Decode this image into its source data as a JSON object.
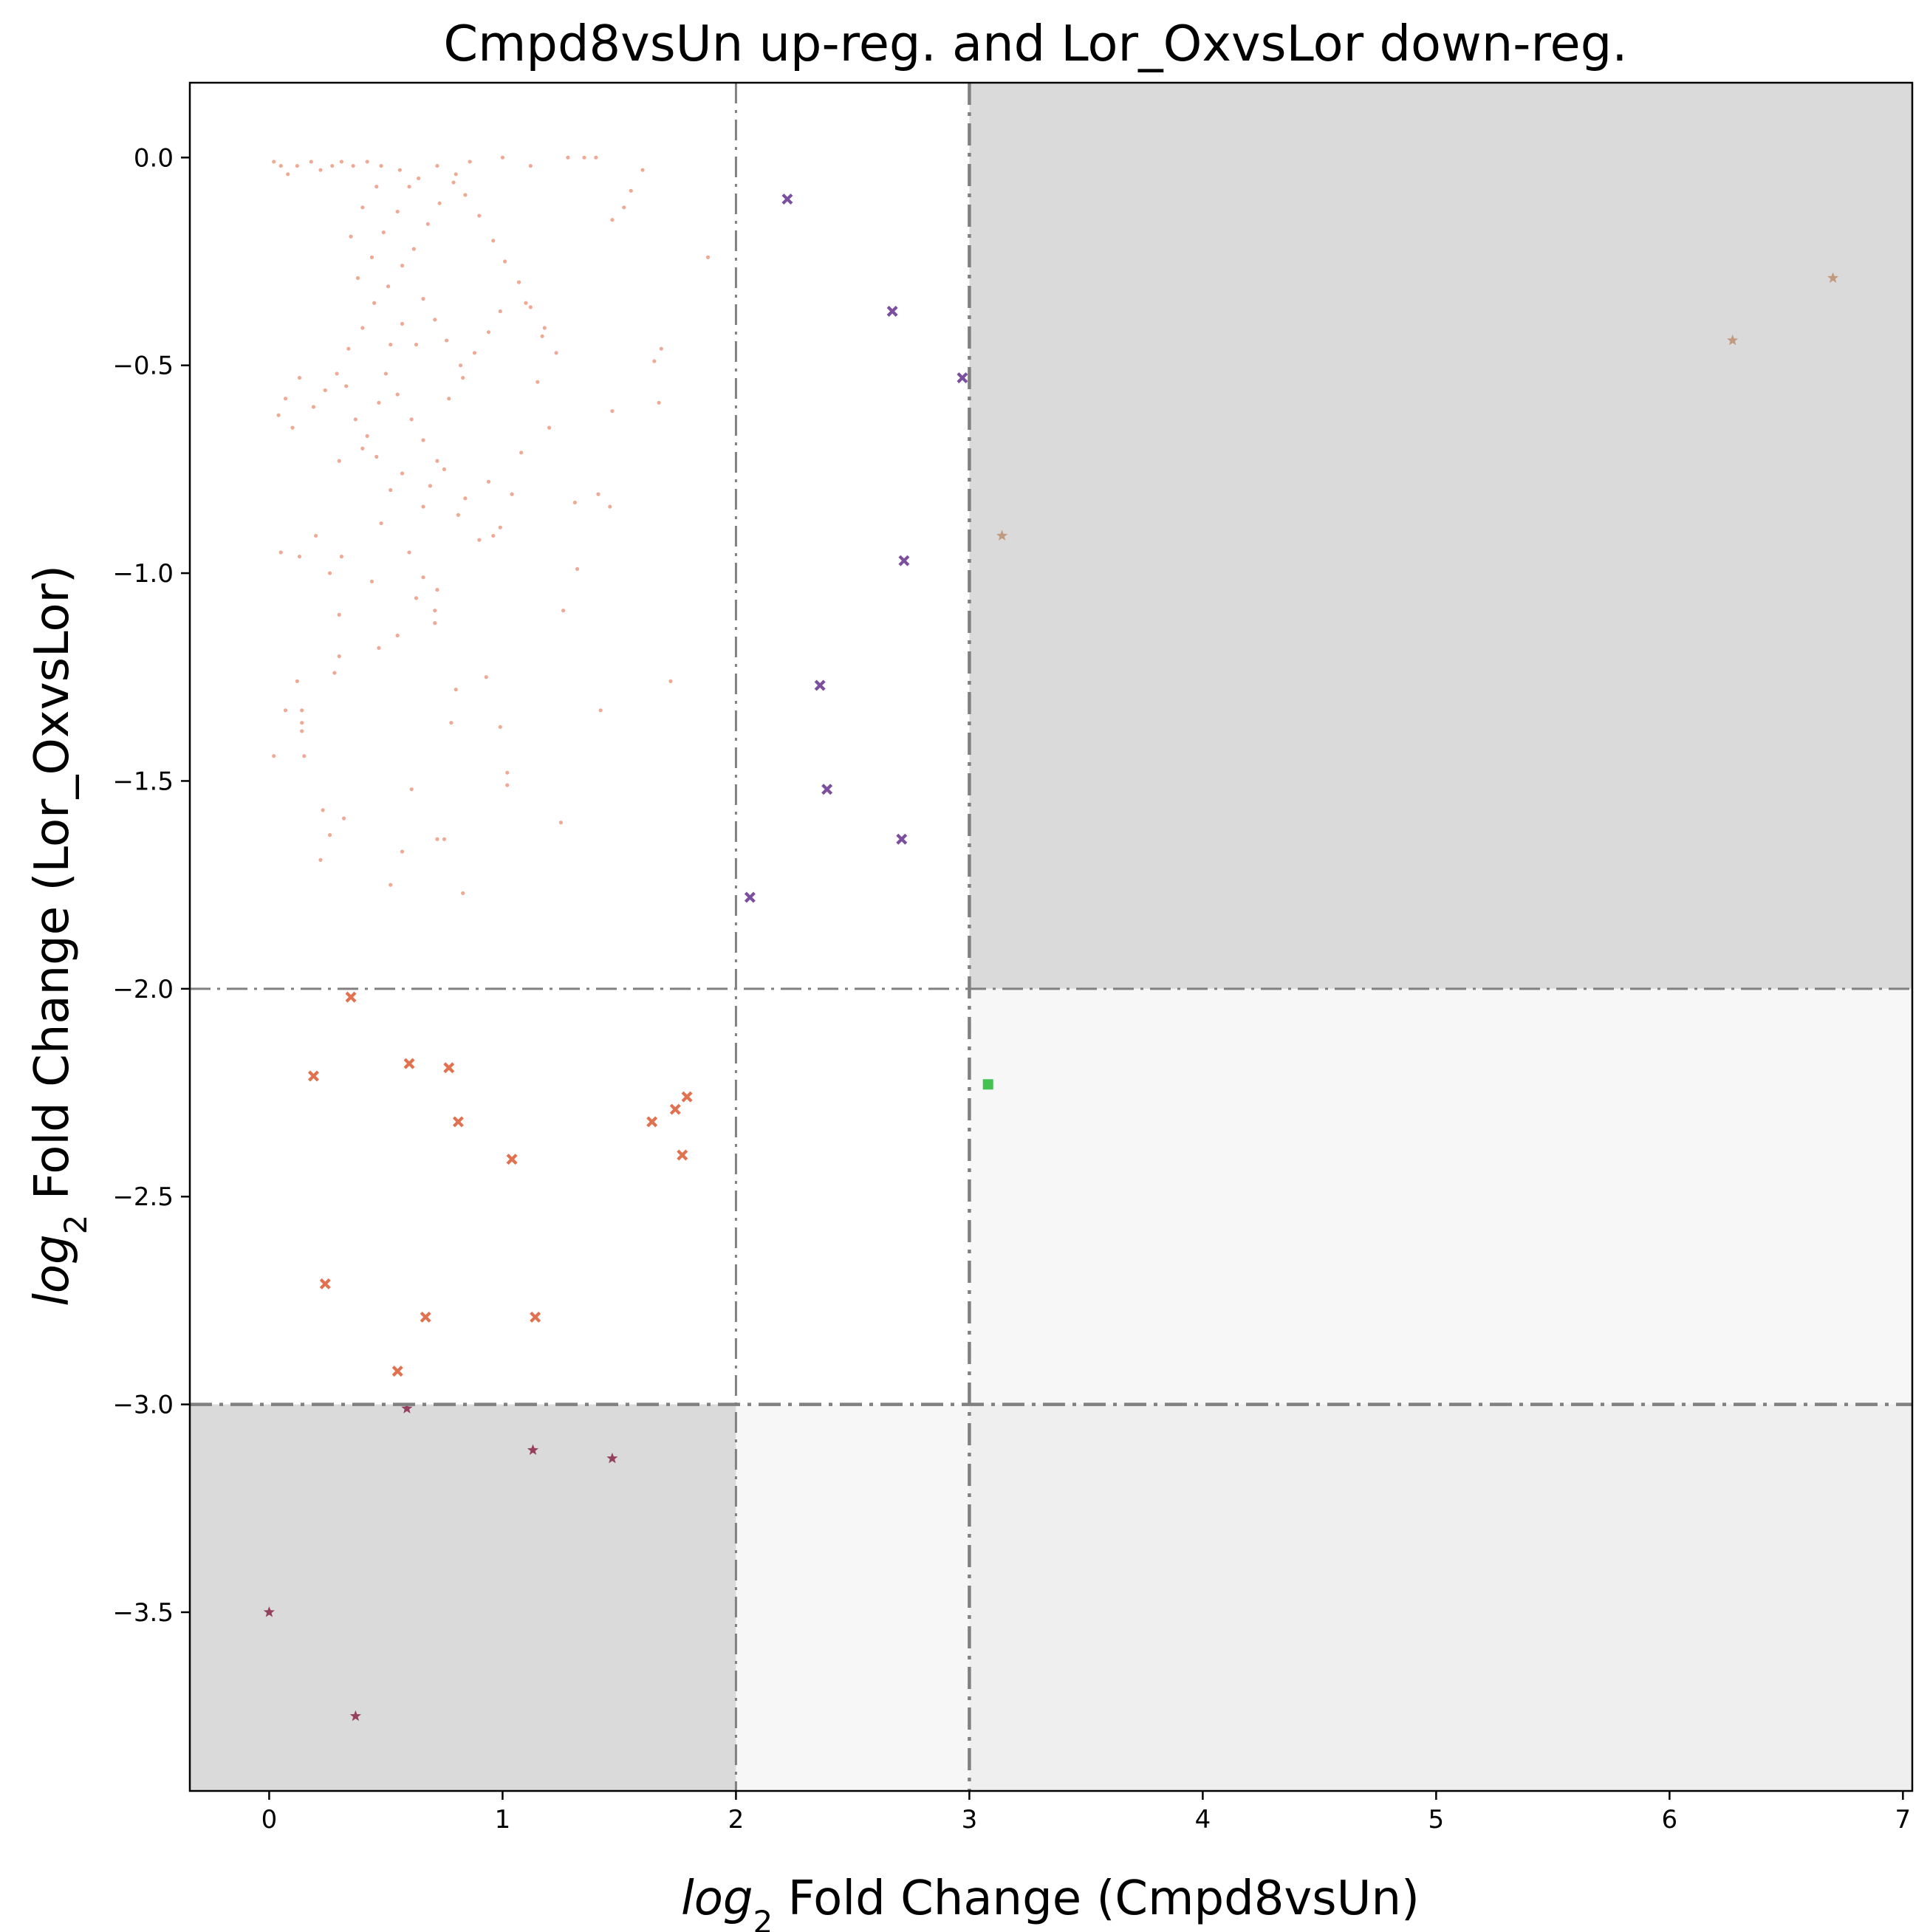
{
  "chart_data": {
    "type": "scatter",
    "title": "Cmpd8vsUn up-reg. and Lor_OxvsLor down-reg.",
    "xlabel": {
      "italic": "log",
      "sub": "2",
      "rest": " Fold Change (Cmpd8vsUn)"
    },
    "ylabel": {
      "italic": "log",
      "sub": "2",
      "rest": " Fold Change (Lor_OxvsLor)"
    },
    "xlim": [
      -0.34,
      7.04
    ],
    "ylim": [
      -3.93,
      0.18
    ],
    "xticks": [
      0,
      1,
      2,
      3,
      4,
      5,
      6,
      7
    ],
    "xtick_labels": [
      "0",
      "1",
      "2",
      "3",
      "4",
      "5",
      "6",
      "7"
    ],
    "yticks": [
      0.0,
      -0.5,
      -1.0,
      -1.5,
      -2.0,
      -2.5,
      -3.0,
      -3.5
    ],
    "ytick_labels": [
      "0.0",
      "−0.5",
      "−1.0",
      "−1.5",
      "−2.0",
      "−2.5",
      "−3.0",
      "−3.5"
    ],
    "grid": false,
    "legend": "none",
    "thresholds": {
      "x": [
        2,
        3
      ],
      "y": [
        -2,
        -3
      ]
    },
    "shaded_regions": [
      {
        "x": [
          3,
          7.04
        ],
        "y": [
          -2,
          0.18
        ],
        "color": "#dadada"
      },
      {
        "x": [
          -0.34,
          2
        ],
        "y": [
          -3.93,
          -3
        ],
        "color": "#dadada"
      },
      {
        "x": [
          3,
          7.04
        ],
        "y": [
          -3,
          -2
        ],
        "color": "#f7f7f7"
      },
      {
        "x": [
          2,
          3
        ],
        "y": [
          -3.93,
          -3
        ],
        "color": "#f7f7f7"
      },
      {
        "x": [
          3,
          7.04
        ],
        "y": [
          -3.93,
          -3
        ],
        "color": "#efefef"
      }
    ],
    "series": [
      {
        "marker": "dot",
        "color": "#e2714f",
        "note_dense": true,
        "points": [
          [
            0.02,
            -0.01
          ],
          [
            0.05,
            -0.02
          ],
          [
            0.08,
            -0.04
          ],
          [
            0.12,
            -0.02
          ],
          [
            0.18,
            -0.01
          ],
          [
            0.22,
            -0.03
          ],
          [
            0.27,
            -0.02
          ],
          [
            0.31,
            -0.01
          ],
          [
            0.36,
            -0.02
          ],
          [
            0.42,
            -0.01
          ],
          [
            0.48,
            -0.02
          ],
          [
            0.56,
            -0.03
          ],
          [
            0.64,
            -0.05
          ],
          [
            0.72,
            -0.02
          ],
          [
            0.8,
            -0.04
          ],
          [
            0.86,
            -0.01
          ],
          [
            1.0,
            0.0
          ],
          [
            1.12,
            -0.02
          ],
          [
            1.28,
            0.0
          ],
          [
            1.35,
            0.0
          ],
          [
            1.4,
            0.0
          ],
          [
            1.6,
            -0.03
          ],
          [
            1.55,
            -0.08
          ],
          [
            1.52,
            -0.12
          ],
          [
            1.47,
            -0.15
          ],
          [
            1.88,
            -0.24
          ],
          [
            1.68,
            -0.46
          ],
          [
            1.65,
            -0.49
          ],
          [
            1.67,
            -0.59
          ],
          [
            1.47,
            -0.61
          ],
          [
            1.41,
            -0.81
          ],
          [
            1.46,
            -0.84
          ],
          [
            1.31,
            -0.83
          ],
          [
            1.32,
            -0.99
          ],
          [
            1.26,
            -1.09
          ],
          [
            1.72,
            -1.26
          ],
          [
            1.42,
            -1.33
          ],
          [
            1.25,
            -1.6
          ],
          [
            1.2,
            -0.65
          ],
          [
            1.17,
            -0.43
          ],
          [
            1.15,
            -0.54
          ],
          [
            1.1,
            -0.35
          ],
          [
            1.08,
            -0.71
          ],
          [
            1.04,
            -0.81
          ],
          [
            0.99,
            -0.89
          ],
          [
            1.02,
            -1.48
          ],
          [
            1.02,
            -1.51
          ],
          [
            0.99,
            -1.37
          ],
          [
            0.93,
            -1.25
          ],
          [
            0.8,
            -1.28
          ],
          [
            0.78,
            -1.36
          ],
          [
            0.75,
            -1.64
          ],
          [
            0.72,
            -1.64
          ],
          [
            0.83,
            -1.77
          ],
          [
            0.57,
            -1.67
          ],
          [
            0.52,
            -1.75
          ],
          [
            0.61,
            -1.52
          ],
          [
            0.32,
            -1.59
          ],
          [
            0.23,
            -1.57
          ],
          [
            0.26,
            -1.63
          ],
          [
            0.22,
            -1.69
          ],
          [
            0.15,
            -1.44
          ],
          [
            0.14,
            -1.38
          ],
          [
            0.14,
            -1.36
          ],
          [
            0.14,
            -1.33
          ],
          [
            0.12,
            -1.26
          ],
          [
            0.07,
            -1.33
          ],
          [
            0.02,
            -1.44
          ],
          [
            0.28,
            -1.24
          ],
          [
            0.3,
            -1.2
          ],
          [
            0.47,
            -1.18
          ],
          [
            0.55,
            -1.15
          ],
          [
            0.3,
            -1.1
          ],
          [
            0.26,
            -1.0
          ],
          [
            0.31,
            -0.96
          ],
          [
            0.13,
            -0.96
          ],
          [
            0.05,
            -0.95
          ],
          [
            0.2,
            -0.91
          ],
          [
            0.44,
            -1.02
          ],
          [
            0.48,
            -0.88
          ],
          [
            0.6,
            -0.95
          ],
          [
            0.66,
            -1.01
          ],
          [
            0.63,
            -1.06
          ],
          [
            0.72,
            -1.04
          ],
          [
            0.71,
            -1.09
          ],
          [
            0.71,
            -1.12
          ],
          [
            0.9,
            -0.92
          ],
          [
            0.96,
            -0.91
          ],
          [
            0.66,
            -0.84
          ],
          [
            0.69,
            -0.79
          ],
          [
            0.75,
            -0.75
          ],
          [
            0.81,
            -0.86
          ],
          [
            0.84,
            -0.82
          ],
          [
            0.94,
            -0.78
          ],
          [
            0.57,
            -0.76
          ],
          [
            0.52,
            -0.8
          ],
          [
            0.46,
            -0.72
          ],
          [
            0.4,
            -0.7
          ],
          [
            0.3,
            -0.73
          ],
          [
            0.04,
            -0.62
          ],
          [
            0.1,
            -0.65
          ],
          [
            0.07,
            -0.58
          ],
          [
            0.13,
            -0.53
          ],
          [
            0.19,
            -0.6
          ],
          [
            0.24,
            -0.56
          ],
          [
            0.29,
            -0.52
          ],
          [
            0.34,
            -0.46
          ],
          [
            0.4,
            -0.41
          ],
          [
            0.45,
            -0.35
          ],
          [
            0.51,
            -0.31
          ],
          [
            0.57,
            -0.26
          ],
          [
            0.62,
            -0.22
          ],
          [
            0.68,
            -0.16
          ],
          [
            0.73,
            -0.11
          ],
          [
            0.79,
            -0.06
          ],
          [
            0.84,
            -0.09
          ],
          [
            0.9,
            -0.14
          ],
          [
            0.96,
            -0.2
          ],
          [
            1.01,
            -0.25
          ],
          [
            1.07,
            -0.3
          ],
          [
            1.12,
            -0.36
          ],
          [
            1.18,
            -0.41
          ],
          [
            1.23,
            -0.47
          ],
          [
            0.5,
            -0.52
          ],
          [
            0.55,
            -0.57
          ],
          [
            0.61,
            -0.63
          ],
          [
            0.66,
            -0.68
          ],
          [
            0.72,
            -0.73
          ],
          [
            0.77,
            -0.58
          ],
          [
            0.83,
            -0.53
          ],
          [
            0.88,
            -0.47
          ],
          [
            0.94,
            -0.42
          ],
          [
            0.99,
            -0.37
          ],
          [
            0.37,
            -0.63
          ],
          [
            0.42,
            -0.67
          ],
          [
            0.47,
            -0.59
          ],
          [
            0.33,
            -0.55
          ],
          [
            0.38,
            -0.29
          ],
          [
            0.44,
            -0.24
          ],
          [
            0.49,
            -0.18
          ],
          [
            0.55,
            -0.13
          ],
          [
            0.6,
            -0.07
          ],
          [
            0.66,
            -0.34
          ],
          [
            0.71,
            -0.39
          ],
          [
            0.76,
            -0.44
          ],
          [
            0.82,
            -0.5
          ],
          [
            0.35,
            -0.19
          ],
          [
            0.4,
            -0.12
          ],
          [
            0.46,
            -0.07
          ],
          [
            0.52,
            -0.45
          ],
          [
            0.57,
            -0.4
          ],
          [
            0.63,
            -0.45
          ]
        ]
      },
      {
        "marker": "cross",
        "color": "#7b4f9e",
        "points": [
          [
            2.22,
            -0.1
          ],
          [
            2.67,
            -0.37
          ],
          [
            2.97,
            -0.53
          ],
          [
            2.72,
            -0.97
          ],
          [
            2.36,
            -1.27
          ],
          [
            2.39,
            -1.52
          ],
          [
            2.71,
            -1.64
          ],
          [
            2.06,
            -1.78
          ]
        ]
      },
      {
        "marker": "star",
        "color": "#c19a7f",
        "points": [
          [
            6.7,
            -0.29
          ],
          [
            6.27,
            -0.44
          ],
          [
            3.14,
            -0.91
          ]
        ]
      },
      {
        "marker": "cross",
        "color": "#e2714f",
        "points": [
          [
            0.35,
            -2.02
          ],
          [
            0.19,
            -2.21
          ],
          [
            0.6,
            -2.18
          ],
          [
            0.77,
            -2.19
          ],
          [
            0.81,
            -2.32
          ],
          [
            1.04,
            -2.41
          ],
          [
            1.64,
            -2.32
          ],
          [
            1.74,
            -2.29
          ],
          [
            1.79,
            -2.26
          ],
          [
            1.77,
            -2.4
          ],
          [
            0.24,
            -2.71
          ],
          [
            0.67,
            -2.79
          ],
          [
            1.14,
            -2.79
          ],
          [
            0.55,
            -2.92
          ]
        ]
      },
      {
        "marker": "square",
        "color": "#44c24f",
        "points": [
          [
            3.08,
            -2.23
          ]
        ]
      },
      {
        "marker": "star",
        "color": "#94405e",
        "points": [
          [
            0.59,
            -3.01
          ],
          [
            1.13,
            -3.11
          ],
          [
            1.47,
            -3.13
          ],
          [
            0.0,
            -3.5
          ],
          [
            0.37,
            -3.75
          ]
        ]
      }
    ]
  }
}
